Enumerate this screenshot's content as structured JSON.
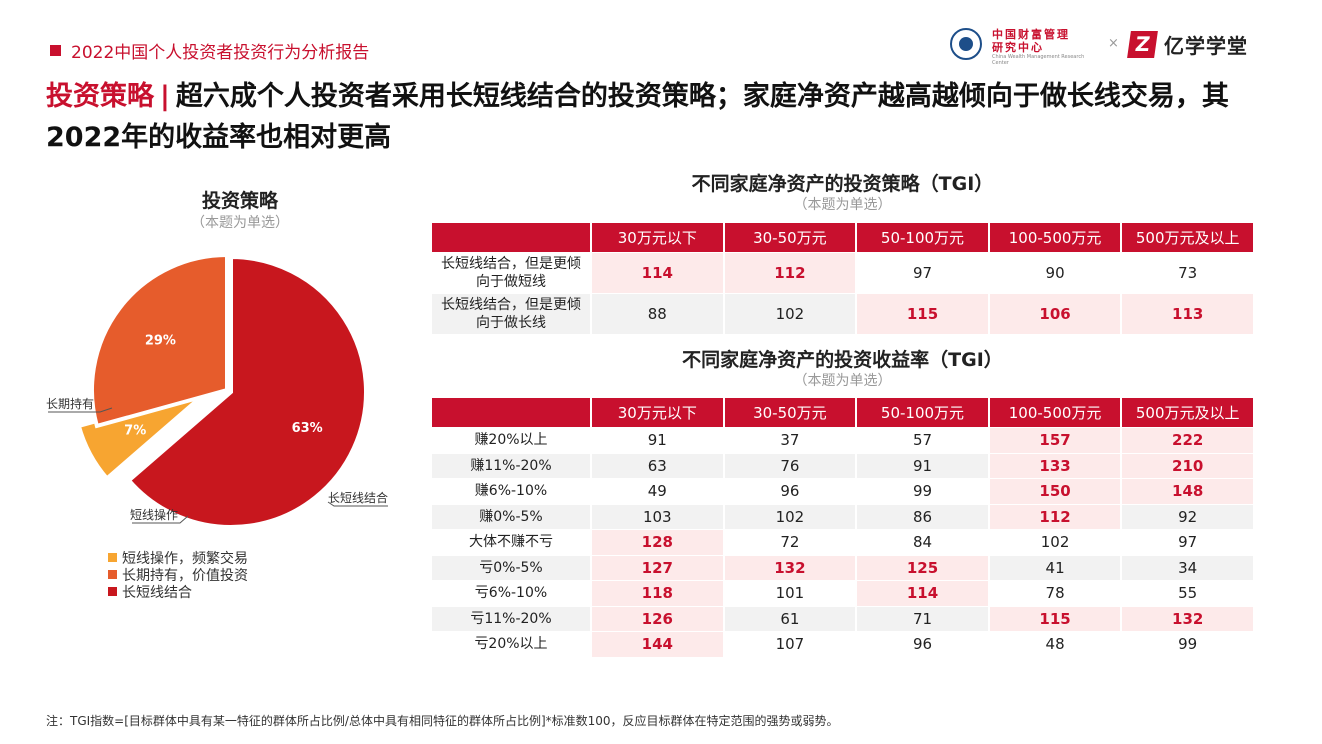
{
  "header": {
    "report_title": "2022中国个人投资者投资行为分析报告",
    "logo_cwm_line1": "中国财富管理",
    "logo_cwm_line2": "研究中心",
    "logo_cwm_en": "China Wealth Management Research Center",
    "logo_times": "×",
    "logo_yx_mark": "Z",
    "logo_yx_name": "亿学学堂"
  },
  "headline": {
    "lead": "投资策略",
    "separator": "|",
    "text": "超六成个人投资者采用长短线结合的投资策略；家庭净资产越高越倾向于做长线交易，其2022年的收益率也相对更高"
  },
  "pie": {
    "title": "投资策略",
    "subtitle": "（本题为单选）"
  },
  "chart_data": [
    {
      "type": "pie",
      "title": "投资策略",
      "subtitle": "（本题为单选）",
      "slices": [
        {
          "label": "长短线结合",
          "value": 63,
          "value_label": "63%",
          "color": "#c8171e"
        },
        {
          "label": "短线操作",
          "value": 7,
          "value_label": "7%",
          "color": "#f7a531"
        },
        {
          "label": "长期持有",
          "value": 29,
          "value_label": "29%",
          "color": "#e65c2c"
        }
      ],
      "legend": [
        {
          "label": "短线操作，频繁交易",
          "color": "#f7a531"
        },
        {
          "label": "长期持有，价值投资",
          "color": "#e65c2c"
        },
        {
          "label": "长短线结合",
          "color": "#c8171e"
        }
      ]
    },
    {
      "type": "table",
      "title": "不同家庭净资产的投资策略（TGI）",
      "subtitle": "（本题为单选）",
      "columns": [
        "30万元以下",
        "30-50万元",
        "50-100万元",
        "100-500万元",
        "500万元及以上"
      ],
      "rows": [
        {
          "label": "长短线结合，但是更倾向于做短线",
          "values": [
            114,
            112,
            97,
            90,
            73
          ],
          "highlight": [
            true,
            true,
            false,
            false,
            false
          ]
        },
        {
          "label": "长短线结合，但是更倾向于做长线",
          "values": [
            88,
            102,
            115,
            106,
            113
          ],
          "highlight": [
            false,
            false,
            true,
            true,
            true
          ]
        }
      ]
    },
    {
      "type": "table",
      "title": "不同家庭净资产的投资收益率（TGI）",
      "subtitle": "（本题为单选）",
      "columns": [
        "30万元以下",
        "30-50万元",
        "50-100万元",
        "100-500万元",
        "500万元及以上"
      ],
      "rows": [
        {
          "label": "赚20%以上",
          "values": [
            91,
            37,
            57,
            157,
            222
          ],
          "highlight": [
            false,
            false,
            false,
            true,
            true
          ]
        },
        {
          "label": "赚11%-20%",
          "values": [
            63,
            76,
            91,
            133,
            210
          ],
          "highlight": [
            false,
            false,
            false,
            true,
            true
          ]
        },
        {
          "label": "赚6%-10%",
          "values": [
            49,
            96,
            99,
            150,
            148
          ],
          "highlight": [
            false,
            false,
            false,
            true,
            true
          ]
        },
        {
          "label": "赚0%-5%",
          "values": [
            103,
            102,
            86,
            112,
            92
          ],
          "highlight": [
            false,
            false,
            false,
            true,
            false
          ]
        },
        {
          "label": "大体不赚不亏",
          "values": [
            128,
            72,
            84,
            102,
            97
          ],
          "highlight": [
            true,
            false,
            false,
            false,
            false
          ]
        },
        {
          "label": "亏0%-5%",
          "values": [
            127,
            132,
            125,
            41,
            34
          ],
          "highlight": [
            true,
            true,
            true,
            false,
            false
          ]
        },
        {
          "label": "亏6%-10%",
          "values": [
            118,
            101,
            114,
            78,
            55
          ],
          "highlight": [
            true,
            false,
            true,
            false,
            false
          ]
        },
        {
          "label": "亏11%-20%",
          "values": [
            126,
            61,
            71,
            115,
            132
          ],
          "highlight": [
            true,
            false,
            false,
            true,
            true
          ]
        },
        {
          "label": "亏20%以上",
          "values": [
            144,
            107,
            96,
            48,
            99
          ],
          "highlight": [
            true,
            false,
            false,
            false,
            false
          ]
        }
      ]
    }
  ],
  "footnote": "注：TGI指数=[目标群体中具有某一特征的群体所占比例/总体中具有相同特征的群体所占比例]*标准数100，反应目标群体在特定范围的强势或弱势。"
}
